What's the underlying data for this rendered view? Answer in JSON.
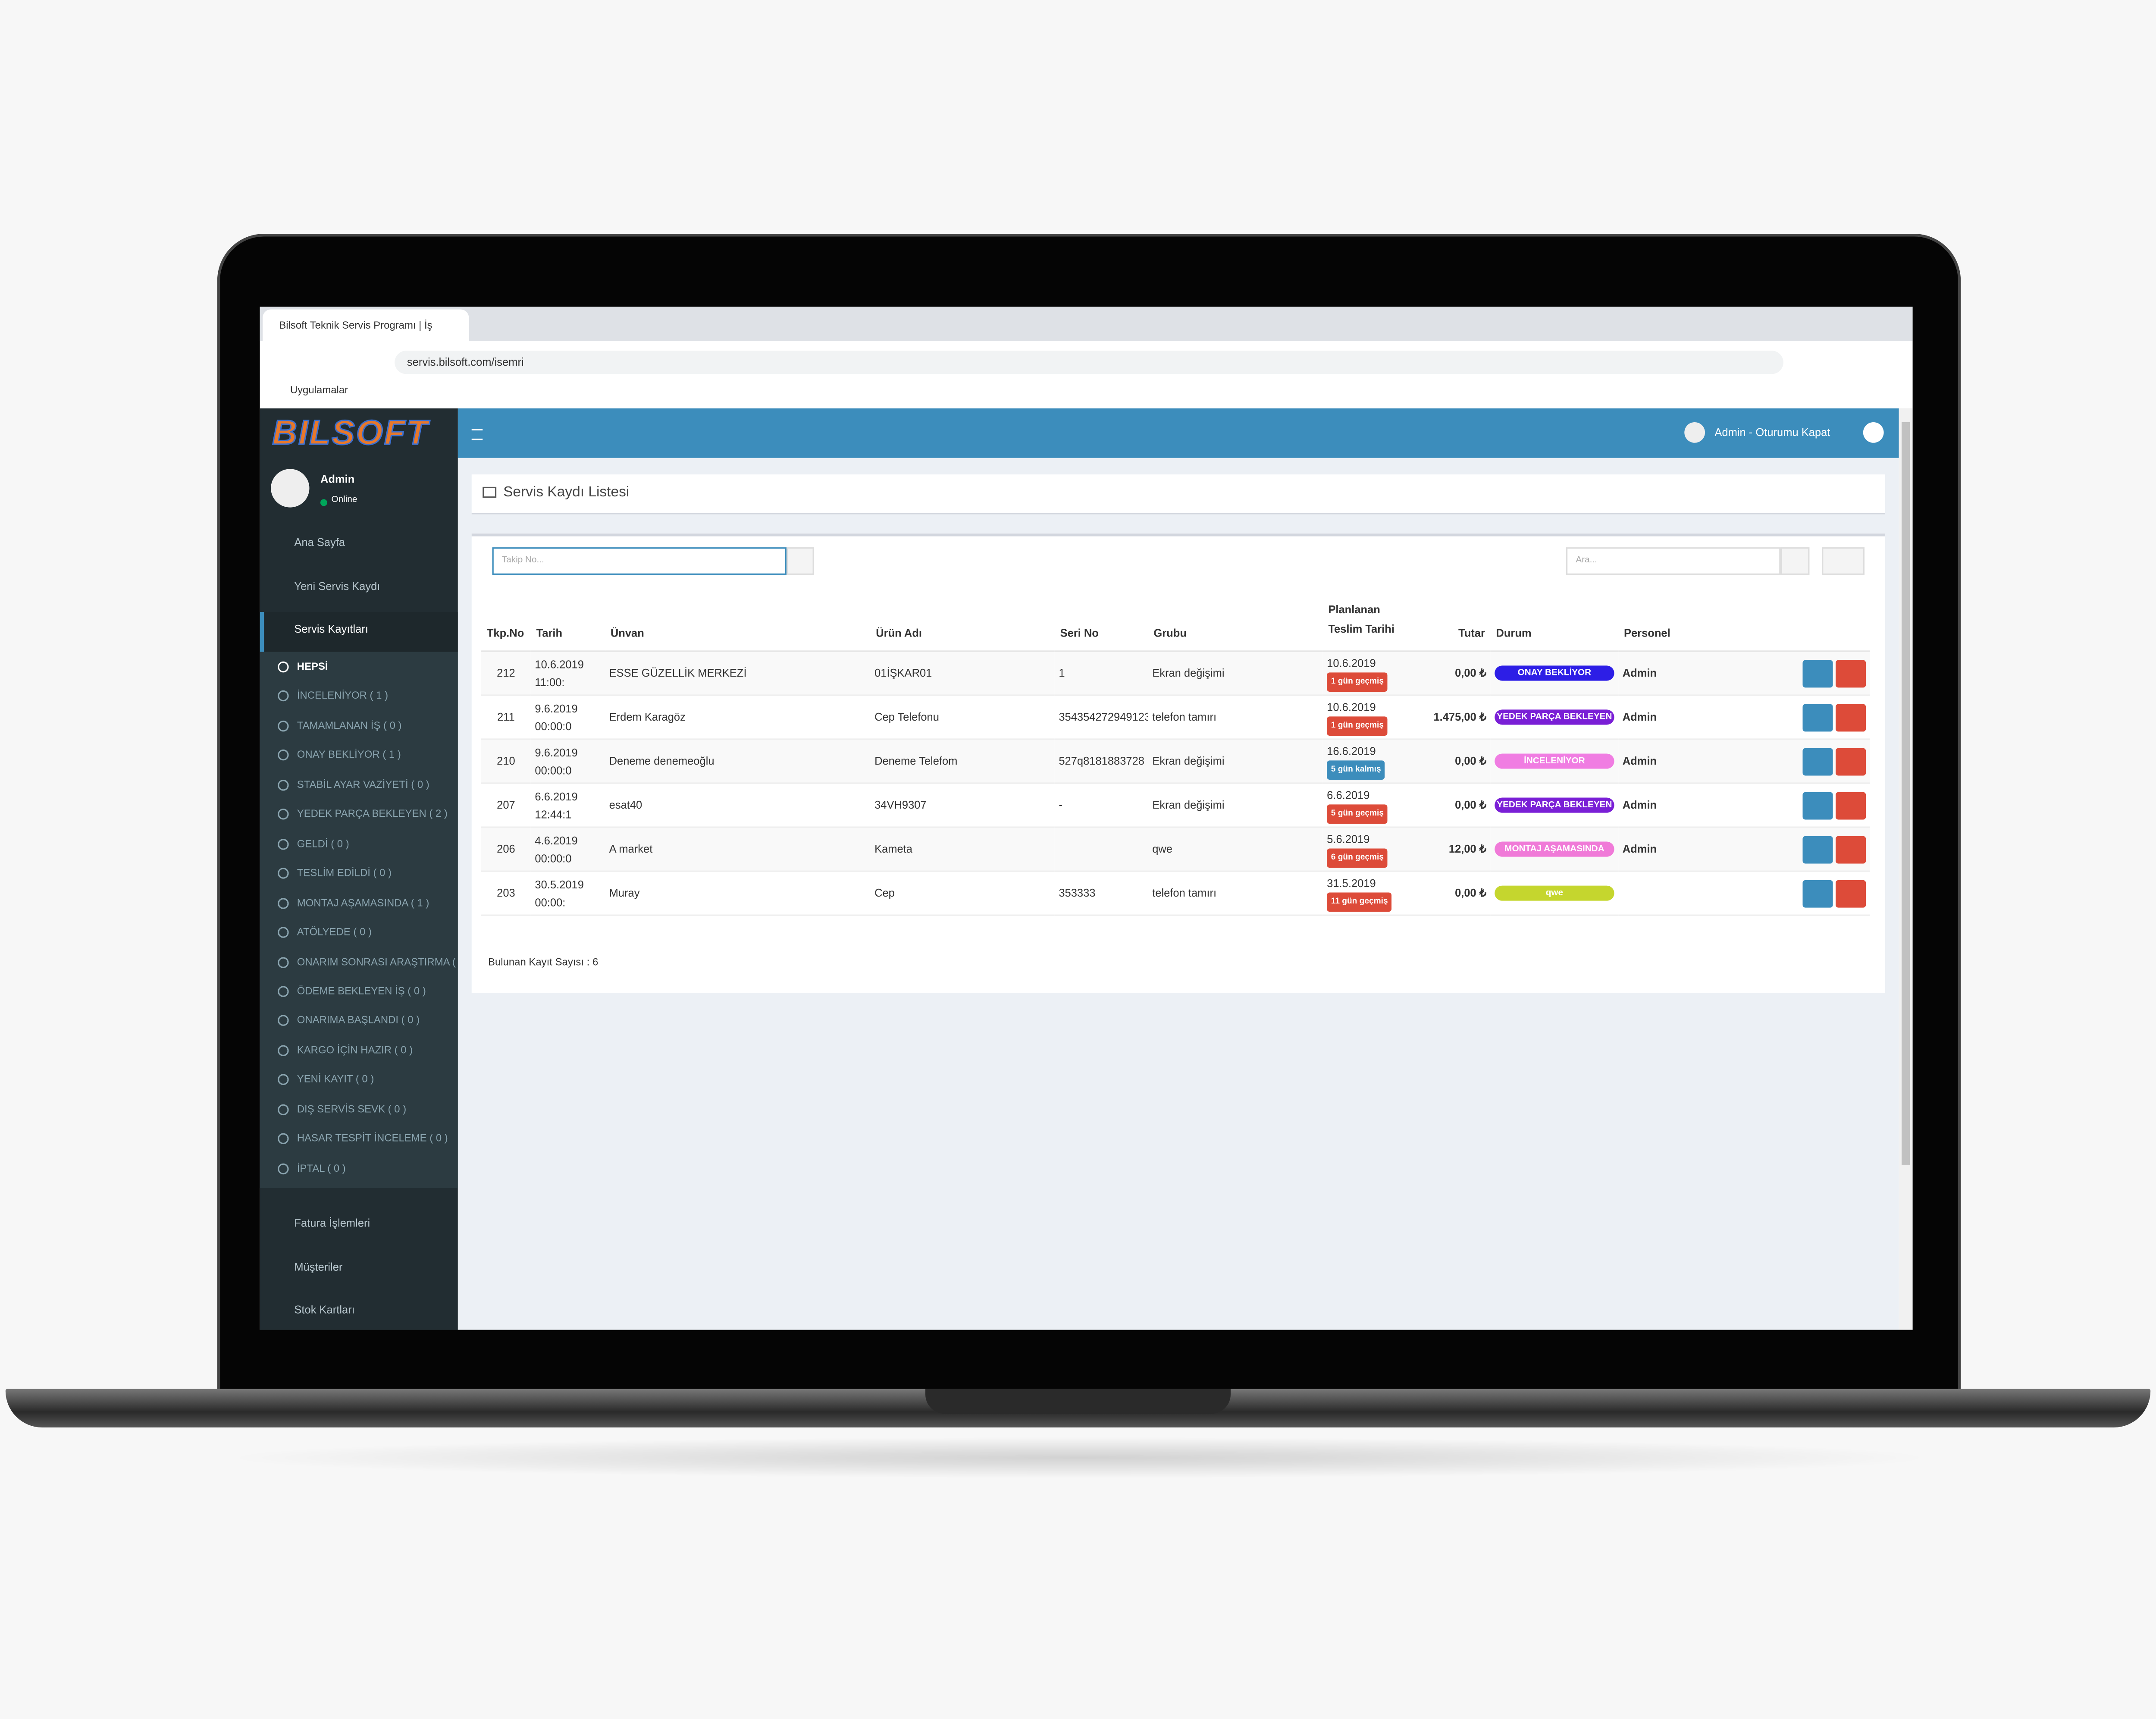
{
  "browser": {
    "tab_title": "Bilsoft Teknik Servis Programı | İş",
    "url": "servis.bilsoft.com/isemri",
    "bookmark": "Uygulamalar"
  },
  "app": {
    "logo": "BILSOFT",
    "user": "Admin",
    "status": "Online",
    "topbar_user": "Admin - Oturumu Kapat"
  },
  "sidebar": {
    "menu": [
      "Ana Sayfa",
      "Yeni Servis Kaydı",
      "Servis Kayıtları"
    ],
    "submenu": [
      "HEPSİ",
      "İNCELENİYOR ( 1 )",
      "TAMAMLANAN İŞ ( 0 )",
      "ONAY BEKLİYOR ( 1 )",
      "STABİL AYAR VAZİYETİ ( 0 )",
      "YEDEK PARÇA BEKLEYEN ( 2 )",
      "GELDİ ( 0 )",
      "TESLİM EDİLDİ ( 0 )",
      "MONTAJ AŞAMASINDA ( 1 )",
      "ATÖLYEDE ( 0 )",
      "ONARIM SONRASI ARAŞTIRMA (",
      "ÖDEME BEKLEYEN İŞ ( 0 )",
      "ONARIMA BAŞLANDI ( 0 )",
      "KARGO İÇİN HAZIR ( 0 )",
      "YENİ KAYIT ( 0 )",
      "DIŞ SERVİS SEVK ( 0 )",
      "HASAR TESPİT İNCELEME ( 0 )",
      "İPTAL ( 0 )"
    ],
    "bottom_menu": [
      "Fatura İşlemleri",
      "Müşteriler",
      "Stok Kartları"
    ]
  },
  "panel": {
    "title": "Servis Kaydı Listesi",
    "search_placeholder": "Takip No...",
    "filter_placeholder": "Ara...",
    "footer": "Bulunan Kayıt Sayısı : 6"
  },
  "table": {
    "headers": [
      "Tkp.No",
      "Tarih",
      "Ünvan",
      "Ürün Adı",
      "Seri No",
      "Grubu",
      "Planlanan Teslim Tarihi",
      "Tutar",
      "Durum",
      "Personel"
    ],
    "rows": [
      {
        "tkp": "212",
        "tarih": "10.6.2019",
        "saat": "11:00:",
        "unvan": "ESSE GÜZELLİK MERKEZİ",
        "urun": "01İŞKAR01",
        "seri": "1",
        "grubu": "Ekran değişimi",
        "teslim": "10.6.2019",
        "gecikme": "1 gün geçmiş",
        "gecikme_color": "#dd4b39",
        "tutar": "0,00 ₺",
        "durum": "ONAY BEKLİYOR",
        "durum_color": "#2d1ee6",
        "personel": "Admin"
      },
      {
        "tkp": "211",
        "tarih": "9.6.2019",
        "saat": "00:00:0",
        "unvan": "Erdem Karagöz",
        "urun": "Cep Telefonu",
        "seri": "354354272949123",
        "grubu": "telefon tamırı",
        "teslim": "10.6.2019",
        "gecikme": "1 gün geçmiş",
        "gecikme_color": "#dd4b39",
        "tutar": "1.475,00 ₺",
        "durum": "YEDEK PARÇA BEKLEYEN",
        "durum_color": "#7a1fd6",
        "personel": "Admin"
      },
      {
        "tkp": "210",
        "tarih": "9.6.2019",
        "saat": "00:00:0",
        "unvan": "Deneme denemeoğlu",
        "urun": "Deneme Telefom",
        "seri": "527q8181883728",
        "grubu": "Ekran değişimi",
        "teslim": "16.6.2019",
        "gecikme": "5 gün kalmış",
        "gecikme_color": "#3c8dbc",
        "tutar": "0,00 ₺",
        "durum": "İNCELENİYOR",
        "durum_color": "#f07de2",
        "personel": "Admin"
      },
      {
        "tkp": "207",
        "tarih": "6.6.2019",
        "saat": "12:44:1",
        "unvan": "esat40",
        "urun": "34VH9307",
        "seri": "-",
        "grubu": "Ekran değişimi",
        "teslim": "6.6.2019",
        "gecikme": "5 gün geçmiş",
        "gecikme_color": "#dd4b39",
        "tutar": "0,00 ₺",
        "durum": "YEDEK PARÇA BEKLEYEN",
        "durum_color": "#7a1fd6",
        "personel": "Admin"
      },
      {
        "tkp": "206",
        "tarih": "4.6.2019",
        "saat": "00:00:0",
        "unvan": "A market",
        "urun": "Kameta",
        "seri": null,
        "grubu": "qwe",
        "teslim": "5.6.2019",
        "gecikme": "6 gün geçmiş",
        "gecikme_color": "#dd4b39",
        "tutar": "12,00 ₺",
        "durum": "MONTAJ AŞAMASINDA",
        "durum_color": "#f07ad8",
        "personel": "Admin"
      },
      {
        "tkp": "203",
        "tarih": "30.5.2019",
        "saat": "00:00:",
        "unvan": "Muray",
        "urun": "Cep",
        "seri": "353333",
        "grubu": "telefon tamırı",
        "teslim": "31.5.2019",
        "gecikme": "11 gün geçmiş",
        "gecikme_color": "#dd4b39",
        "tutar": "0,00 ₺",
        "durum": "qwe",
        "durum_color": "#c5d62e",
        "personel": null
      }
    ]
  }
}
